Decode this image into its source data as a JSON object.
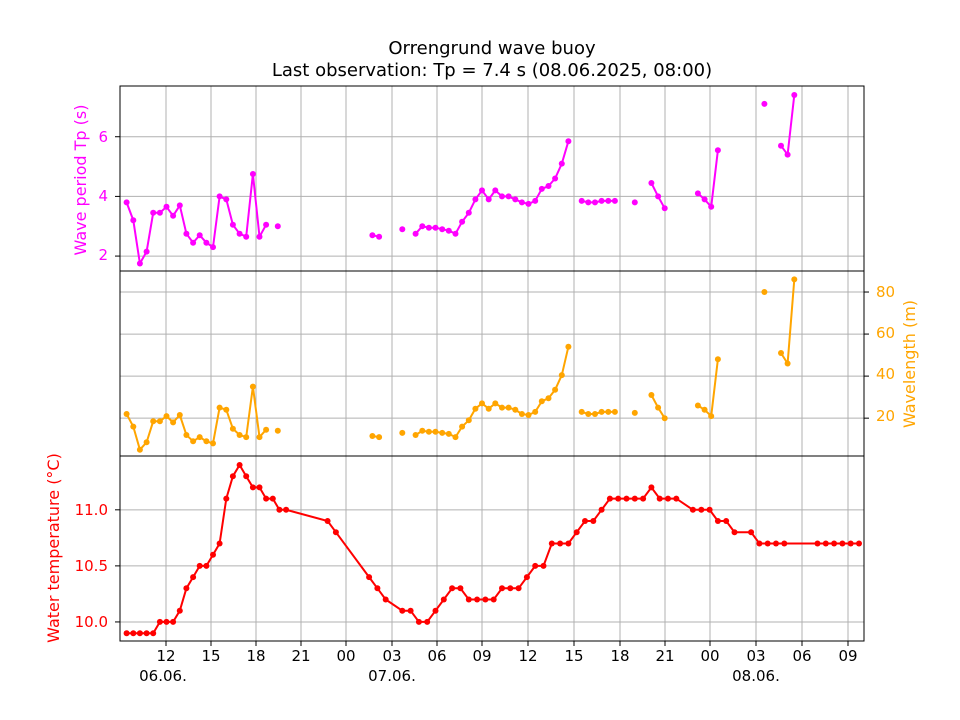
{
  "title": {
    "line1": "Orrengrund wave buoy",
    "line2": "Last observation: Tp = 7.4 s (08.06.2025, 08:00)"
  },
  "colors": {
    "period": "#ff00ff",
    "wavelength": "#ffa500",
    "temperature": "#ff0000",
    "grid": "#b0b0b0",
    "axis": "#000000"
  },
  "chart_data": [
    {
      "type": "line",
      "ylabel": "Wave period Tp (s)",
      "series": [
        {
          "color": "#ff00ff",
          "segments": [
            [
              [
                7.4,
                3.8
              ],
              [
                7.8,
                3.2
              ],
              [
                8.2,
                1.75
              ],
              [
                8.6,
                2.15
              ],
              [
                9.0,
                3.45
              ],
              [
                9.4,
                3.45
              ],
              [
                9.8,
                3.65
              ],
              [
                10.2,
                3.35
              ],
              [
                10.6,
                3.7
              ],
              [
                11.0,
                2.75
              ],
              [
                11.4,
                2.45
              ],
              [
                11.8,
                2.7
              ],
              [
                12.2,
                2.45
              ],
              [
                12.6,
                2.3
              ],
              [
                13.0,
                4.0
              ],
              [
                13.4,
                3.9
              ],
              [
                13.8,
                3.05
              ],
              [
                14.2,
                2.75
              ],
              [
                14.6,
                2.65
              ],
              [
                15.0,
                4.75
              ],
              [
                15.4,
                2.65
              ],
              [
                15.8,
                3.05
              ]
            ],
            [
              [
                16.5,
                3.0
              ]
            ],
            [
              [
                22.2,
                2.7
              ],
              [
                22.6,
                2.65
              ]
            ],
            [
              [
                24.0,
                2.9
              ]
            ],
            [
              [
                24.8,
                2.75
              ],
              [
                25.2,
                3.0
              ],
              [
                25.6,
                2.95
              ],
              [
                26.0,
                2.95
              ],
              [
                26.4,
                2.9
              ],
              [
                26.8,
                2.85
              ],
              [
                27.2,
                2.75
              ],
              [
                27.6,
                3.15
              ],
              [
                28.0,
                3.45
              ],
              [
                28.4,
                3.9
              ],
              [
                28.8,
                4.2
              ],
              [
                29.2,
                3.9
              ],
              [
                29.6,
                4.2
              ],
              [
                30.0,
                4.0
              ],
              [
                30.4,
                4.0
              ],
              [
                30.8,
                3.9
              ],
              [
                31.2,
                3.8
              ],
              [
                31.6,
                3.75
              ],
              [
                32.0,
                3.85
              ],
              [
                32.4,
                4.25
              ],
              [
                32.8,
                4.35
              ],
              [
                33.2,
                4.6
              ],
              [
                33.6,
                5.1
              ],
              [
                34.0,
                5.85
              ]
            ],
            [
              [
                34.8,
                3.85
              ],
              [
                35.2,
                3.8
              ],
              [
                35.6,
                3.8
              ],
              [
                36.0,
                3.85
              ],
              [
                36.4,
                3.85
              ],
              [
                36.8,
                3.85
              ]
            ],
            [
              [
                38.0,
                3.8
              ]
            ],
            [
              [
                39.0,
                4.45
              ],
              [
                39.4,
                4.0
              ],
              [
                39.8,
                3.6
              ]
            ],
            [
              [
                41.8,
                4.1
              ],
              [
                42.2,
                3.9
              ],
              [
                42.6,
                3.65
              ],
              [
                43.0,
                5.55
              ]
            ],
            [
              [
                45.8,
                7.1
              ]
            ],
            [
              [
                46.8,
                5.7
              ],
              [
                47.2,
                5.4
              ],
              [
                47.6,
                7.4
              ]
            ]
          ]
        }
      ],
      "yticks": [
        "2",
        "4",
        "6"
      ]
    },
    {
      "type": "line",
      "ylabel": "Wavelength (m)",
      "series": [
        {
          "color": "#ffa500",
          "segments": [
            [
              [
                7.4,
                22
              ],
              [
                7.8,
                16
              ],
              [
                8.2,
                5
              ],
              [
                8.6,
                8.5
              ],
              [
                9.0,
                18.5
              ],
              [
                9.4,
                18.5
              ],
              [
                9.8,
                21
              ],
              [
                10.2,
                18
              ],
              [
                10.6,
                21.5
              ],
              [
                11.0,
                12
              ],
              [
                11.4,
                9
              ],
              [
                11.8,
                11
              ],
              [
                12.2,
                9
              ],
              [
                12.6,
                8
              ],
              [
                13.0,
                25
              ],
              [
                13.4,
                24
              ],
              [
                13.8,
                15
              ],
              [
                14.2,
                12
              ],
              [
                14.6,
                11
              ],
              [
                15.0,
                35
              ],
              [
                15.4,
                11
              ],
              [
                15.8,
                14.5
              ]
            ],
            [
              [
                16.5,
                14
              ]
            ],
            [
              [
                22.2,
                11.5
              ],
              [
                22.6,
                11
              ]
            ],
            [
              [
                24.0,
                13
              ]
            ],
            [
              [
                24.8,
                12
              ],
              [
                25.2,
                14
              ],
              [
                25.6,
                13.5
              ],
              [
                26.0,
                13.5
              ],
              [
                26.4,
                13
              ],
              [
                26.8,
                12.5
              ],
              [
                27.2,
                11
              ],
              [
                27.6,
                16
              ],
              [
                28.0,
                19
              ],
              [
                28.4,
                24.5
              ],
              [
                28.8,
                27
              ],
              [
                29.2,
                24.5
              ],
              [
                29.6,
                27
              ],
              [
                30.0,
                25
              ],
              [
                30.4,
                25
              ],
              [
                30.8,
                24
              ],
              [
                31.2,
                22
              ],
              [
                31.6,
                21.5
              ],
              [
                32.0,
                23
              ],
              [
                32.4,
                28
              ],
              [
                32.8,
                29.5
              ],
              [
                33.2,
                33.5
              ],
              [
                33.6,
                40.5
              ],
              [
                34.0,
                54
              ]
            ],
            [
              [
                34.8,
                23
              ],
              [
                35.2,
                22
              ],
              [
                35.6,
                22
              ],
              [
                36.0,
                23
              ],
              [
                36.4,
                23
              ],
              [
                36.8,
                23
              ]
            ],
            [
              [
                38.0,
                22.5
              ]
            ],
            [
              [
                39.0,
                31
              ],
              [
                39.4,
                25
              ],
              [
                39.8,
                20
              ]
            ],
            [
              [
                41.8,
                26
              ],
              [
                42.2,
                24
              ],
              [
                42.6,
                21
              ],
              [
                43.0,
                48
              ]
            ],
            [
              [
                45.8,
                80
              ]
            ],
            [
              [
                46.8,
                51
              ],
              [
                47.2,
                46
              ],
              [
                47.6,
                86
              ]
            ]
          ]
        }
      ],
      "yticks": [
        "20",
        "40",
        "60",
        "80"
      ]
    },
    {
      "type": "line",
      "ylabel": "Water temperature (°C)",
      "series": [
        {
          "color": "#ff0000",
          "segments": [
            [
              [
                7.4,
                9.9
              ],
              [
                7.8,
                9.9
              ],
              [
                8.2,
                9.9
              ],
              [
                8.6,
                9.9
              ],
              [
                9.0,
                9.9
              ],
              [
                9.4,
                10.0
              ],
              [
                9.8,
                10.0
              ],
              [
                10.2,
                10.0
              ],
              [
                10.6,
                10.1
              ],
              [
                11.0,
                10.3
              ],
              [
                11.4,
                10.4
              ],
              [
                11.8,
                10.5
              ],
              [
                12.2,
                10.5
              ],
              [
                12.6,
                10.6
              ],
              [
                13.0,
                10.7
              ],
              [
                13.4,
                11.1
              ],
              [
                13.8,
                11.3
              ],
              [
                14.2,
                11.4
              ],
              [
                14.6,
                11.3
              ],
              [
                15.0,
                11.2
              ],
              [
                15.4,
                11.2
              ],
              [
                15.8,
                11.1
              ],
              [
                16.2,
                11.1
              ],
              [
                16.6,
                11.0
              ],
              [
                17.0,
                11.0
              ],
              [
                19.5,
                10.9
              ],
              [
                20.0,
                10.8
              ],
              [
                22.0,
                10.4
              ],
              [
                22.5,
                10.3
              ],
              [
                23.0,
                10.2
              ],
              [
                24.0,
                10.1
              ],
              [
                24.5,
                10.1
              ],
              [
                25.0,
                10.0
              ],
              [
                25.5,
                10.0
              ],
              [
                26.0,
                10.1
              ],
              [
                26.5,
                10.2
              ],
              [
                27.0,
                10.3
              ],
              [
                27.5,
                10.3
              ],
              [
                28.0,
                10.2
              ],
              [
                28.5,
                10.2
              ],
              [
                29.0,
                10.2
              ],
              [
                29.5,
                10.2
              ],
              [
                30.0,
                10.3
              ],
              [
                30.5,
                10.3
              ],
              [
                31.0,
                10.3
              ],
              [
                31.5,
                10.4
              ],
              [
                32.0,
                10.5
              ],
              [
                32.5,
                10.5
              ],
              [
                33.0,
                10.7
              ],
              [
                33.5,
                10.7
              ],
              [
                34.0,
                10.7
              ],
              [
                34.5,
                10.8
              ],
              [
                35.0,
                10.9
              ],
              [
                35.5,
                10.9
              ],
              [
                36.0,
                11.0
              ],
              [
                36.5,
                11.1
              ],
              [
                37.0,
                11.1
              ],
              [
                37.5,
                11.1
              ],
              [
                38.0,
                11.1
              ],
              [
                38.5,
                11.1
              ],
              [
                39.0,
                11.2
              ],
              [
                39.5,
                11.1
              ],
              [
                40.0,
                11.1
              ],
              [
                40.5,
                11.1
              ],
              [
                41.5,
                11.0
              ],
              [
                42.0,
                11.0
              ],
              [
                42.5,
                11.0
              ],
              [
                43.0,
                10.9
              ],
              [
                43.5,
                10.9
              ],
              [
                44.0,
                10.8
              ],
              [
                45.0,
                10.8
              ],
              [
                45.5,
                10.7
              ],
              [
                46.0,
                10.7
              ],
              [
                46.5,
                10.7
              ],
              [
                47.0,
                10.7
              ],
              [
                49.0,
                10.7
              ],
              [
                49.5,
                10.7
              ],
              [
                50.0,
                10.7
              ],
              [
                50.5,
                10.7
              ],
              [
                51.0,
                10.7
              ],
              [
                51.5,
                10.7
              ]
            ]
          ]
        }
      ],
      "yticks": [
        "10.0",
        "10.5",
        "11.0"
      ]
    }
  ],
  "xaxis": {
    "tick_labels": [
      "12",
      "15",
      "18",
      "21",
      "00",
      "03",
      "06",
      "09",
      "12",
      "15",
      "18",
      "21",
      "00",
      "03",
      "06",
      "09"
    ],
    "date_labels": [
      "06.06.",
      "07.06.",
      "08.06."
    ]
  }
}
